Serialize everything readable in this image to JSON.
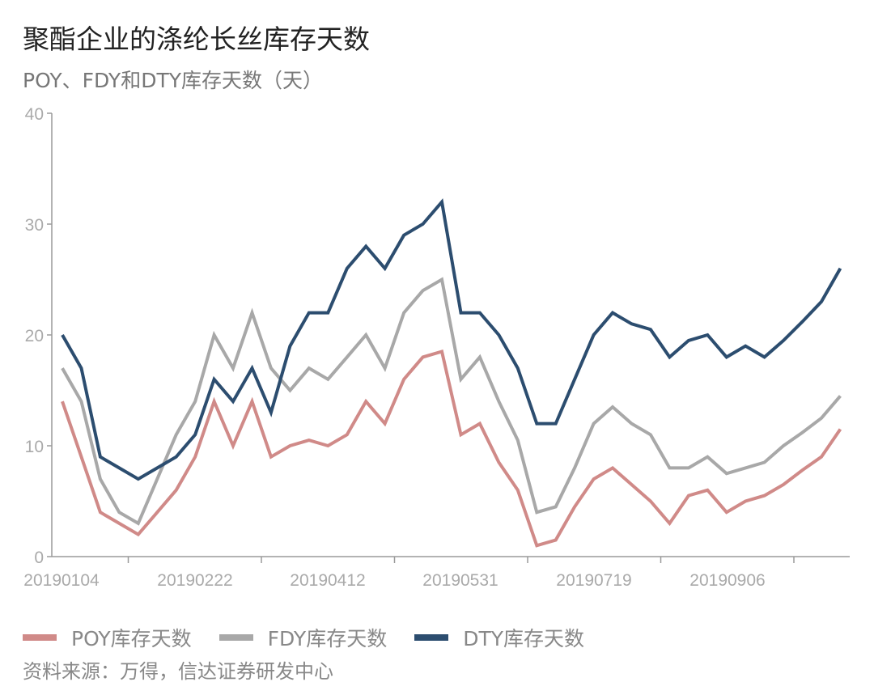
{
  "title": "聚酯企业的涤纶长丝库存天数",
  "subtitle": "POY、FDY和DTY库存天数（天）",
  "source": "资料来源：万得，信达证券研发中心",
  "chart_data": {
    "type": "line",
    "x_tick_labels": [
      "20190104",
      "20190222",
      "20190412",
      "20190531",
      "20190719",
      "20190906"
    ],
    "x": [
      "20190104",
      "20190111",
      "20190118",
      "20190125",
      "20190201",
      "20190208",
      "20190215",
      "20190222",
      "20190301",
      "20190308",
      "20190315",
      "20190322",
      "20190329",
      "20190405",
      "20190412",
      "20190419",
      "20190426",
      "20190503",
      "20190510",
      "20190517",
      "20190524",
      "20190531",
      "20190607",
      "20190614",
      "20190621",
      "20190628",
      "20190705",
      "20190712",
      "20190719",
      "20190726",
      "20190802",
      "20190809",
      "20190816",
      "20190823",
      "20190830",
      "20190906",
      "20190913",
      "20190920",
      "20190927",
      "20191004",
      "20191011",
      "20191018"
    ],
    "ylim": [
      0,
      40
    ],
    "yticks": [
      0,
      10,
      20,
      30,
      40
    ],
    "grid": false,
    "legend_position": "bottom",
    "series": [
      {
        "name": "POY库存天数",
        "color": "#d08a88",
        "values": [
          14,
          9,
          4,
          3,
          2,
          4,
          6,
          9,
          14,
          10,
          14,
          9,
          10,
          10.5,
          10,
          11,
          14,
          12,
          16,
          18,
          18.5,
          11,
          12,
          8.5,
          6,
          1,
          1.5,
          4.5,
          7,
          8,
          6.5,
          5,
          3,
          5.5,
          6,
          4,
          5,
          5.5,
          6.5,
          7.8,
          9,
          11.5
        ]
      },
      {
        "name": "FDY库存天数",
        "color": "#a8a8a8",
        "values": [
          17,
          14,
          7,
          4,
          3,
          7,
          11,
          14,
          20,
          17,
          22,
          17,
          15,
          17,
          16,
          18,
          20,
          17,
          22,
          24,
          25,
          16,
          18,
          14,
          10.5,
          4,
          4.5,
          8,
          12,
          13.5,
          12,
          11,
          8,
          8,
          9,
          7.5,
          8,
          8.5,
          10,
          11.2,
          12.5,
          14.5
        ]
      },
      {
        "name": "DTY库存天数",
        "color": "#2c4d6f",
        "values": [
          20,
          17,
          9,
          8,
          7,
          8,
          9,
          11,
          16,
          14,
          17,
          13,
          19,
          22,
          22,
          26,
          28,
          26,
          29,
          30,
          32,
          22,
          22,
          20,
          17,
          12,
          12,
          16,
          20,
          22,
          21,
          20.5,
          18,
          19.5,
          20,
          18,
          19,
          18,
          19.5,
          21.2,
          23,
          26
        ]
      }
    ]
  }
}
